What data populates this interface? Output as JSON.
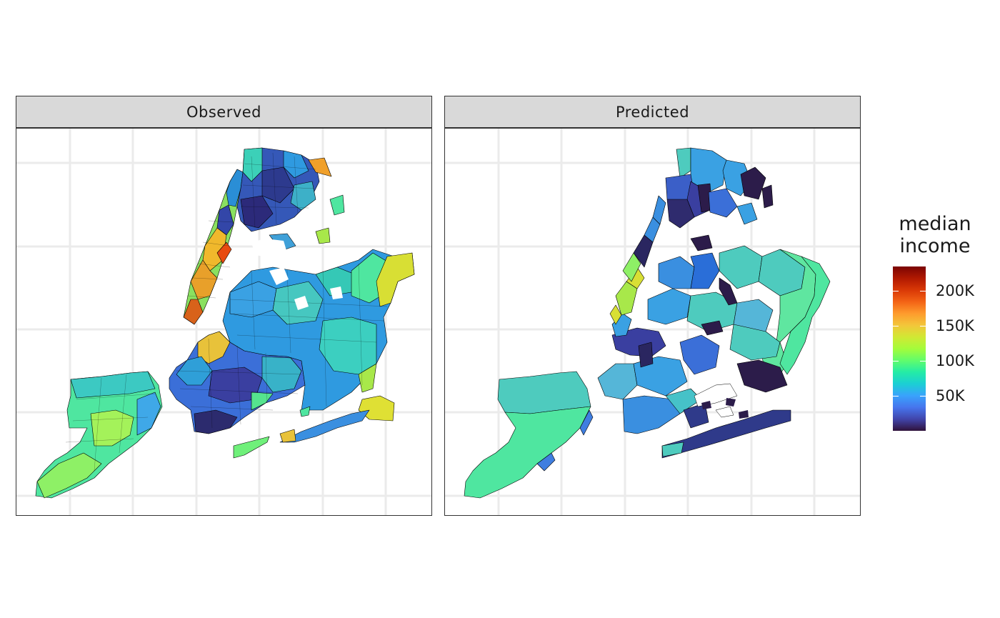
{
  "panels": [
    {
      "id": "observed",
      "title": "Observed"
    },
    {
      "id": "predicted",
      "title": "Predicted"
    }
  ],
  "legend": {
    "title_line1": "median",
    "title_line2": "income",
    "ticks": [
      {
        "label": "200K",
        "value": 200000
      },
      {
        "label": "150K",
        "value": 150000
      },
      {
        "label": "100K",
        "value": 100000
      },
      {
        "label": "50K",
        "value": 50000
      }
    ],
    "range": [
      0,
      235000
    ],
    "palette": [
      "#30123b",
      "#4145ab",
      "#4675ed",
      "#39a2fc",
      "#1bcfd4",
      "#24eca6",
      "#61fc6c",
      "#a4fc3b",
      "#d1e834",
      "#f3c63a",
      "#fe9b2d",
      "#f36315",
      "#d93806",
      "#b11901",
      "#7a0403"
    ]
  },
  "map": {
    "background": "#ffffff",
    "gridline_color": "#ebebeb",
    "border_color": "#333333",
    "region_outline": "#000000"
  }
}
